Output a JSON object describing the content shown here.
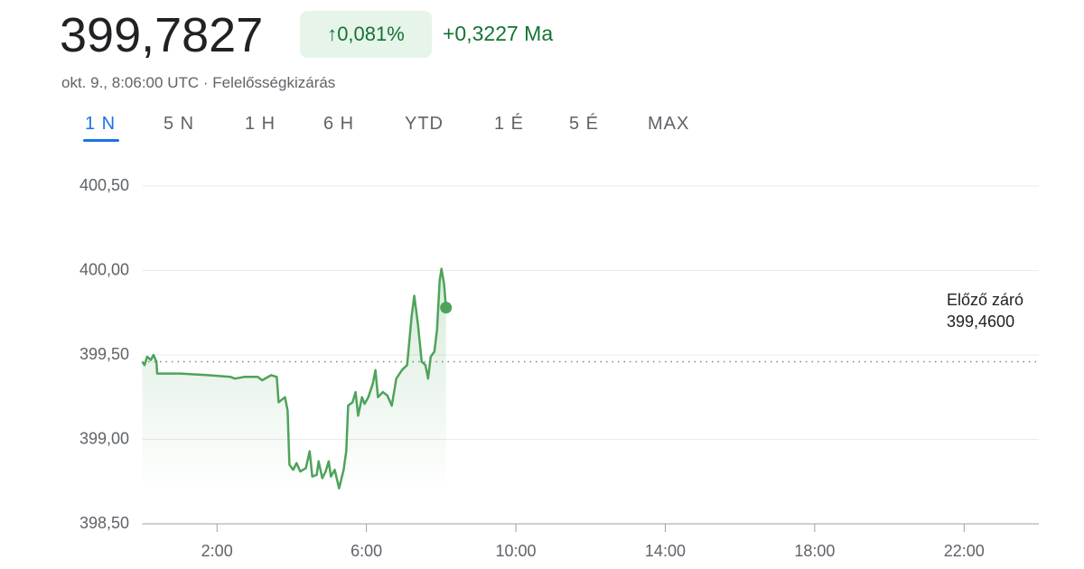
{
  "header": {
    "price": "399,7827",
    "change_percent": "0,081%",
    "change_abs": "+0,3227 Ma",
    "timestamp": "okt. 9., 8:06:00 UTC",
    "disclaimer": "Felelősségkizárás"
  },
  "tabs": {
    "items": [
      "1 N",
      "5 N",
      "1 H",
      "6 H",
      "YTD",
      "1 É",
      "5 É",
      "MAX"
    ],
    "active": 0
  },
  "chart_data": {
    "type": "line",
    "x": [
      0,
      0.06,
      0.13,
      0.23,
      0.3,
      0.38,
      0.4,
      1.03,
      1.76,
      2.36,
      2.48,
      2.73,
      3.09,
      3.21,
      3.45,
      3.6,
      3.65,
      3.82,
      3.89,
      3.94,
      4.04,
      4.13,
      4.23,
      4.38,
      4.48,
      4.55,
      4.67,
      4.72,
      4.82,
      4.91,
      4.99,
      5.05,
      5.15,
      5.27,
      5.39,
      5.46,
      5.51,
      5.63,
      5.71,
      5.78,
      5.88,
      5.95,
      6.05,
      6.17,
      6.24,
      6.31,
      6.44,
      6.56,
      6.68,
      6.8,
      6.95,
      7.09,
      7.21,
      7.28,
      7.38,
      7.48,
      7.58,
      7.65,
      7.72,
      7.82,
      7.89,
      7.96,
      8.01,
      8.08,
      8.13
    ],
    "series": [
      {
        "color": "#4ea35a",
        "values": [
          399.46,
          399.44,
          399.49,
          399.47,
          399.5,
          399.46,
          399.39,
          399.39,
          399.38,
          399.37,
          399.36,
          399.37,
          399.37,
          399.35,
          399.38,
          399.37,
          399.22,
          399.25,
          399.17,
          398.85,
          398.82,
          398.86,
          398.81,
          398.83,
          398.93,
          398.78,
          398.79,
          398.87,
          398.77,
          398.81,
          398.87,
          398.78,
          398.82,
          398.71,
          398.82,
          398.93,
          399.2,
          399.22,
          399.28,
          399.14,
          399.25,
          399.21,
          399.25,
          399.33,
          399.41,
          399.25,
          399.28,
          399.26,
          399.2,
          399.36,
          399.41,
          399.44,
          399.73,
          399.85,
          399.68,
          399.46,
          399.44,
          399.36,
          399.49,
          399.52,
          399.65,
          399.94,
          400.01,
          399.92,
          399.78
        ]
      }
    ],
    "xlim": [
      0,
      24
    ],
    "xticks": [
      {
        "value": 2,
        "label": "2:00"
      },
      {
        "value": 6,
        "label": "6:00"
      },
      {
        "value": 10,
        "label": "10:00"
      },
      {
        "value": 14,
        "label": "14:00"
      },
      {
        "value": 18,
        "label": "18:00"
      },
      {
        "value": 22,
        "label": "22:00"
      }
    ],
    "ylim": [
      398.5,
      400.5
    ],
    "yticks": [
      {
        "value": 398.5,
        "label": "398,50"
      },
      {
        "value": 399,
        "label": "399,00"
      },
      {
        "value": 399.5,
        "label": "399,50"
      },
      {
        "value": 400,
        "label": "400,00"
      },
      {
        "value": 400.5,
        "label": "400,50"
      }
    ],
    "grid": true,
    "reference": {
      "label": "Előző záró",
      "value": 399.46,
      "value_label": "399,4600"
    }
  }
}
